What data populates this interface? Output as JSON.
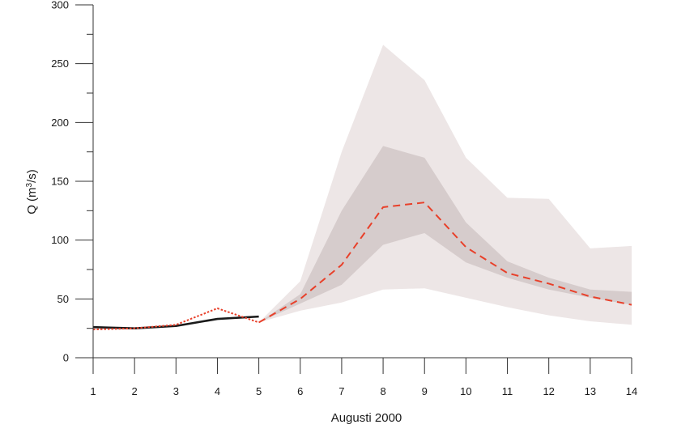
{
  "chart_data": {
    "type": "line",
    "title": "",
    "xlabel": "Augusti 2000",
    "ylabel_parts": {
      "base": "Q (m",
      "sup": "3",
      "tail": "/s)"
    },
    "x_ticks": [
      "1",
      "2",
      "3",
      "4",
      "5",
      "6",
      "7",
      "8",
      "9",
      "10",
      "11",
      "12",
      "13",
      "14"
    ],
    "y_ticks": [
      "0",
      "50",
      "100",
      "150",
      "200",
      "250",
      "300"
    ],
    "xlim": [
      1,
      14
    ],
    "ylim": [
      0,
      300
    ],
    "grid": false,
    "legend": "none",
    "bands": [
      {
        "x": [
          5,
          6,
          7,
          8,
          9,
          10,
          11,
          12,
          13,
          14
        ],
        "lower": [
          30,
          40,
          47,
          58,
          59,
          51,
          43,
          36,
          31,
          28
        ],
        "upper": [
          30,
          65,
          175,
          266,
          236,
          170,
          136,
          135,
          93,
          95
        ],
        "color": "#ede6e6"
      },
      {
        "x": [
          5,
          6,
          7,
          8,
          9,
          10,
          11,
          12,
          13,
          14
        ],
        "lower": [
          30,
          46,
          62,
          96,
          106,
          81,
          68,
          58,
          51,
          45
        ],
        "upper": [
          30,
          54,
          125,
          180,
          170,
          115,
          82,
          68,
          58,
          56
        ],
        "color": "#d6cccc"
      }
    ],
    "series": [
      {
        "x": [
          1,
          2,
          3,
          4,
          5
        ],
        "values": [
          26,
          25,
          27,
          33,
          35
        ],
        "style": "solid",
        "color": "#1a1a1a"
      },
      {
        "x": [
          1,
          2,
          3,
          4,
          5
        ],
        "values": [
          24,
          25,
          28,
          42,
          30
        ],
        "style": "dotted",
        "color": "#e8402a"
      },
      {
        "x": [
          5,
          6,
          7,
          8,
          9,
          10,
          11,
          12,
          13,
          14
        ],
        "values": [
          30,
          50,
          79,
          128,
          132,
          94,
          72,
          63,
          52,
          45
        ],
        "style": "dashed",
        "color": "#e8402a"
      }
    ]
  }
}
